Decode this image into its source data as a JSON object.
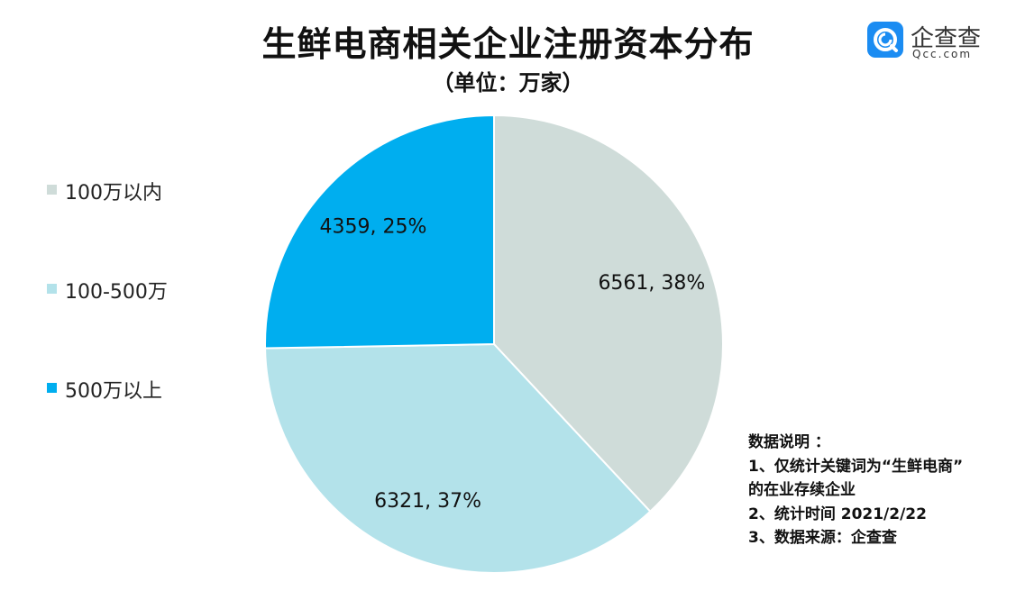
{
  "title": "生鲜电商相关企业注册资本分布",
  "subtitle": "（单位：万家）",
  "logo": {
    "name": "企查查",
    "domain": "Qcc.com",
    "icon": "qcc-logo-icon",
    "color": "#1b8cf2"
  },
  "chart_data": {
    "type": "pie",
    "title": "生鲜电商相关企业注册资本分布",
    "unit": "（单位：万家）",
    "legend_position": "left",
    "slices": [
      {
        "label": "100万以内",
        "value": 6561,
        "percent": "38%",
        "data_label": "6561, 38%",
        "color": "#cfdcd9"
      },
      {
        "label": "100-500万",
        "value": 6321,
        "percent": "37%",
        "data_label": "6321, 37%",
        "color": "#b3e2ea"
      },
      {
        "label": "500万以上",
        "value": 4359,
        "percent": "25%",
        "data_label": "4359, 25%",
        "color": "#00aeef"
      }
    ]
  },
  "notes": {
    "heading": "数据说明 ：",
    "lines": [
      "1、仅统计关键词为“生鲜电商”",
      "的在业存续企业",
      "2、统计时间  2021/2/22",
      "3、数据来源：企查查"
    ]
  }
}
